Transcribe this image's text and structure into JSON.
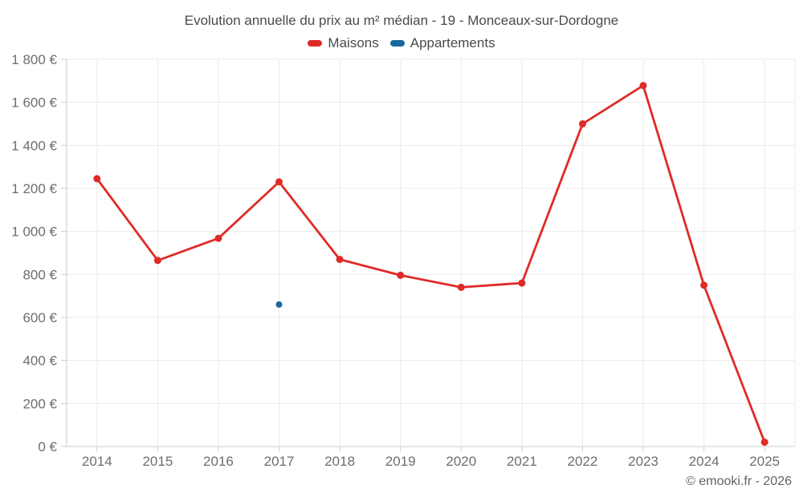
{
  "title": "Evolution annuelle du prix au m² médian - 19 - Monceaux-sur-Dordogne",
  "footer": "© emooki.fr - 2026",
  "legend": [
    {
      "label": "Maisons",
      "color": "#df2b27"
    },
    {
      "label": "Appartements",
      "color": "#17699d"
    }
  ],
  "colors": {
    "house_red": "#df2b27",
    "apartment_blue": "#17699d",
    "grid": "#ebebeb",
    "axis": "#cccccc",
    "tick_label": "#6e6e6e",
    "title_text": "#4a4a4a"
  },
  "chart_data": {
    "type": "line",
    "title": "Evolution annuelle du prix au m² médian - 19 - Monceaux-sur-Dordogne",
    "categories": [
      "2014",
      "2015",
      "2016",
      "2017",
      "2018",
      "2019",
      "2020",
      "2021",
      "2022",
      "2023",
      "2024",
      "2025"
    ],
    "series": [
      {
        "name": "Maisons",
        "color": "#df2b27",
        "marker_radius": 4.5,
        "values": [
          1245,
          865,
          968,
          1230,
          870,
          796,
          740,
          760,
          1500,
          1678,
          750,
          20
        ]
      },
      {
        "name": "Appartements",
        "color": "#17699d",
        "marker_radius": 4,
        "values": [
          null,
          null,
          null,
          660,
          null,
          null,
          null,
          null,
          null,
          null,
          null,
          null
        ]
      }
    ],
    "xlabel": "",
    "ylabel": "",
    "ylim": [
      0,
      1800
    ],
    "ytick_step": 200,
    "ytick_labels": [
      "0 €",
      "200 €",
      "400 €",
      "600 €",
      "800 €",
      "1 000 €",
      "1 200 €",
      "1 400 €",
      "1 600 €",
      "1 800 €"
    ],
    "grid": true,
    "legend_position": "top",
    "currency": "€"
  }
}
